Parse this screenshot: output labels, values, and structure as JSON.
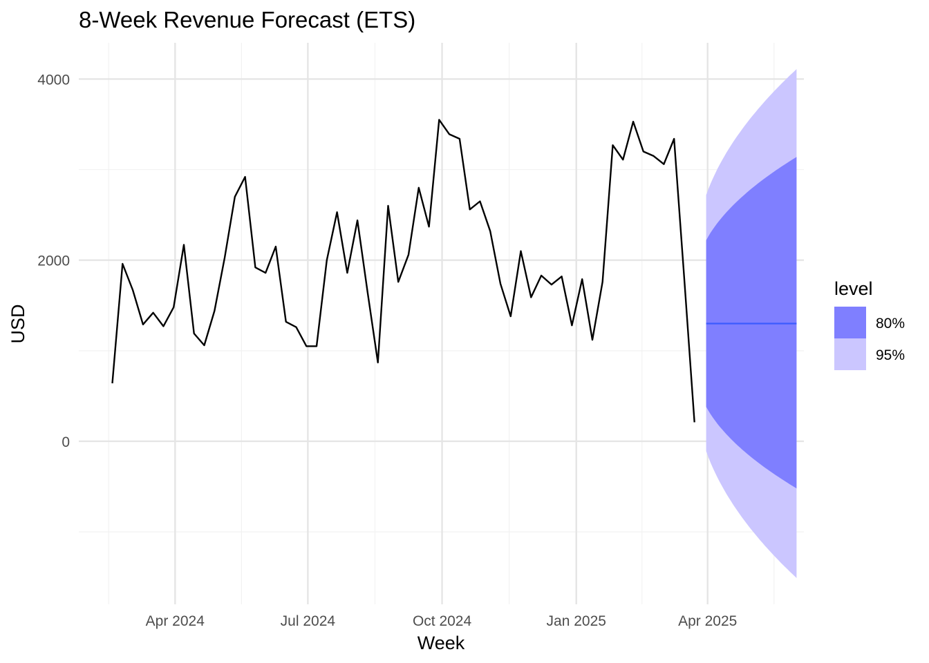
{
  "chart_data": {
    "type": "line",
    "title": "8-Week Revenue Forecast (ETS)",
    "xlabel": "Week",
    "ylabel": "USD",
    "x_tick_labels": [
      "Apr 2024",
      "Jul 2024",
      "Oct 2024",
      "Jan 2025",
      "Apr 2025"
    ],
    "x_tick_dates": [
      "2024-04-01",
      "2024-07-01",
      "2024-10-01",
      "2025-01-01",
      "2025-04-01"
    ],
    "y_ticks": [
      0,
      2000,
      4000
    ],
    "xlim": [
      "2024-01-26",
      "2025-06-06"
    ],
    "ylim": [
      -1800,
      4400
    ],
    "grid": true,
    "series": [
      {
        "x": [
          "2024-02-18",
          "2024-02-25",
          "2024-03-03",
          "2024-03-10",
          "2024-03-17",
          "2024-03-24",
          "2024-03-31",
          "2024-04-07",
          "2024-04-14",
          "2024-04-21",
          "2024-04-28",
          "2024-05-05",
          "2024-05-12",
          "2024-05-19",
          "2024-05-26",
          "2024-06-02",
          "2024-06-09",
          "2024-06-16",
          "2024-06-23",
          "2024-06-30",
          "2024-07-07",
          "2024-07-14",
          "2024-07-21",
          "2024-07-28",
          "2024-08-04",
          "2024-08-11",
          "2024-08-18",
          "2024-08-25",
          "2024-09-01",
          "2024-09-08",
          "2024-09-15",
          "2024-09-22",
          "2024-09-29",
          "2024-10-06",
          "2024-10-13",
          "2024-10-20",
          "2024-10-27",
          "2024-11-03",
          "2024-11-10",
          "2024-11-17",
          "2024-11-24",
          "2024-12-01",
          "2024-12-08",
          "2024-12-15",
          "2024-12-22",
          "2024-12-29",
          "2025-01-05",
          "2025-01-12",
          "2025-01-19",
          "2025-01-26",
          "2025-02-02",
          "2025-02-09",
          "2025-02-16",
          "2025-02-23",
          "2025-03-02",
          "2025-03-09",
          "2025-03-16",
          "2025-03-23"
        ],
        "values": [
          640,
          1960,
          1670,
          1290,
          1420,
          1270,
          1480,
          2170,
          1190,
          1060,
          1440,
          2030,
          2700,
          2920,
          1920,
          1860,
          2150,
          1320,
          1260,
          1050,
          1050,
          2000,
          2530,
          1860,
          2440,
          1640,
          870,
          2600,
          1760,
          2060,
          2800,
          2370,
          3550,
          3390,
          3340,
          2560,
          2650,
          2320,
          1740,
          1380,
          2100,
          1590,
          1830,
          1730,
          1820,
          1280,
          1790,
          1120,
          1760,
          3270,
          3110,
          3530,
          3200,
          3150,
          3060,
          3340,
          1800,
          210
        ]
      }
    ],
    "forecast": {
      "x": [
        "2025-03-31",
        "2025-06-01"
      ],
      "mean": 1300,
      "lower_80": [
        380,
        -520
      ],
      "upper_80": [
        2220,
        3140
      ],
      "lower_95": [
        -110,
        -1510
      ],
      "upper_95": [
        2720,
        4110
      ]
    },
    "legend": {
      "title": "level",
      "placement": "right",
      "items": [
        {
          "label": "80%",
          "color": "#7f7fff"
        },
        {
          "label": "95%",
          "color": "#cbc6ff"
        }
      ]
    },
    "colors": {
      "line": "#000000",
      "forecast_mean": "#3b5bff",
      "band_80": "#7f7fff",
      "band_95": "#cbc6ff",
      "grid_major": "#e5e5e5",
      "grid_minor": "#f2f2f2"
    }
  }
}
